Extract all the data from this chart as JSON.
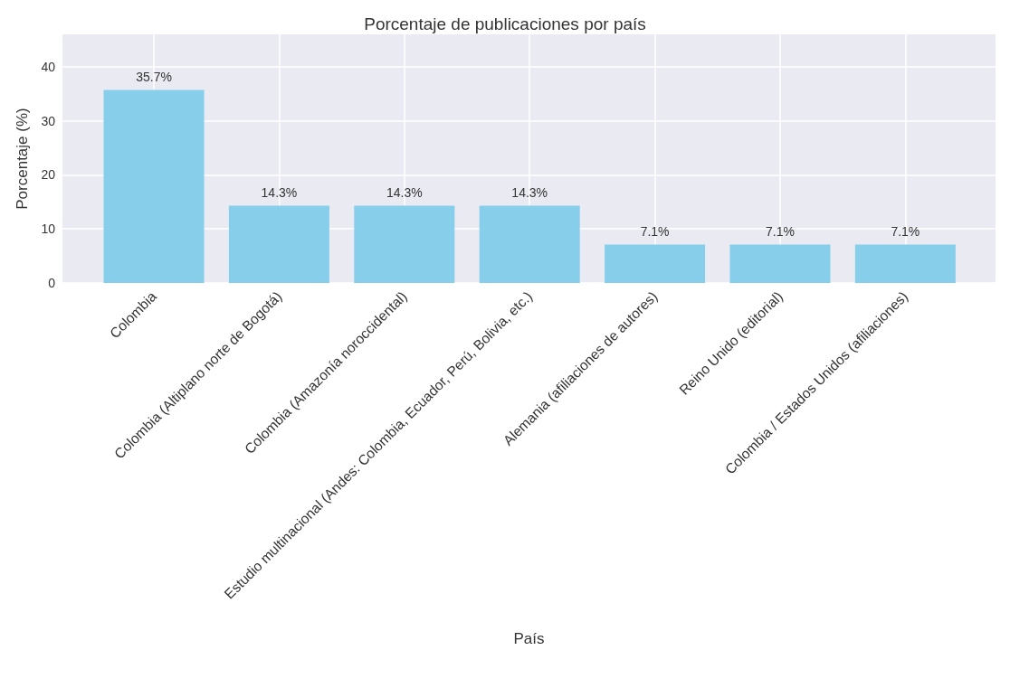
{
  "chart_data": {
    "type": "bar",
    "title": "Porcentaje de publicaciones por país",
    "xlabel": "País",
    "ylabel": "Porcentaje (%)",
    "categories": [
      "Colombia",
      "Colombia (Altiplano norte de Bogotá)",
      "Colombia (Amazonía noroccidental)",
      "Estudio multinacional (Andes: Colombia, Ecuador, Perú, Bolivia, etc.)",
      "Alemania (afiliaciones de autores)",
      "Reino Unido (editorial)",
      "Colombia / Estados Unidos (afiliaciones)"
    ],
    "values": [
      35.7,
      14.3,
      14.3,
      14.3,
      7.1,
      7.1,
      7.1
    ],
    "value_labels": [
      "35.7%",
      "14.3%",
      "14.3%",
      "14.3%",
      "7.1%",
      "7.1%",
      "7.1%"
    ],
    "color": "#87ceeb",
    "ylim": [
      0,
      46
    ],
    "yticks": [
      0,
      10,
      20,
      30,
      40
    ],
    "grid": true
  }
}
